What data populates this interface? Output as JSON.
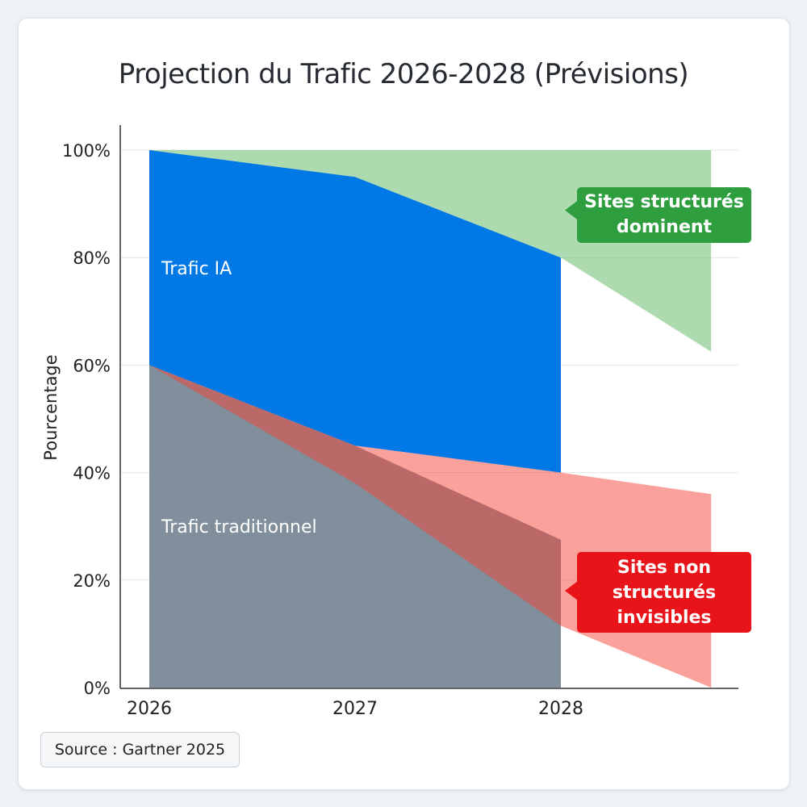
{
  "chart_data": {
    "type": "area",
    "title": "Projection du Trafic 2026-2028 (Prévisions)",
    "xlabel": "",
    "ylabel": "Pourcentage",
    "x_ticks": [
      "2026",
      "2027",
      "2028"
    ],
    "y_ticks": [
      "0%",
      "20%",
      "40%",
      "60%",
      "80%",
      "100%"
    ],
    "ylim": [
      0,
      100
    ],
    "grid": "horizontal",
    "areas": [
      {
        "name": "Trafic traditionnel",
        "color": "#808f9b",
        "x": [
          2026,
          2027,
          2028
        ],
        "lower": [
          0,
          0,
          0
        ],
        "upper": [
          60,
          45,
          27.5
        ]
      },
      {
        "name": "Trafic IA",
        "color": "#0078e6",
        "x": [
          2026,
          2027,
          2028
        ],
        "lower": [
          60,
          45,
          40
        ],
        "upper": [
          100,
          95,
          80
        ]
      },
      {
        "color": "#4caf50",
        "opacity": 0.46,
        "x": [
          2026,
          2027,
          2028,
          2028.73
        ],
        "lower": [
          100,
          95,
          80,
          62.5
        ],
        "upper": [
          100,
          100,
          100,
          100
        ]
      },
      {
        "color": "#f44336",
        "opacity": 0.5,
        "x": [
          2026,
          2027,
          2028,
          2028.73
        ],
        "lower": [
          60,
          38,
          11.5,
          0
        ],
        "upper": [
          60,
          45,
          40,
          36
        ]
      }
    ],
    "annotations": [
      {
        "text": "Sites structurés dominent",
        "lines": [
          "Sites structurés",
          "dominent"
        ],
        "color": "#2e9e3f"
      },
      {
        "text": "Sites non structurés invisibles",
        "lines": [
          "Sites non",
          "structurés",
          "invisibles"
        ],
        "color": "#e8141a"
      }
    ]
  },
  "source": "Source : Gartner 2025"
}
